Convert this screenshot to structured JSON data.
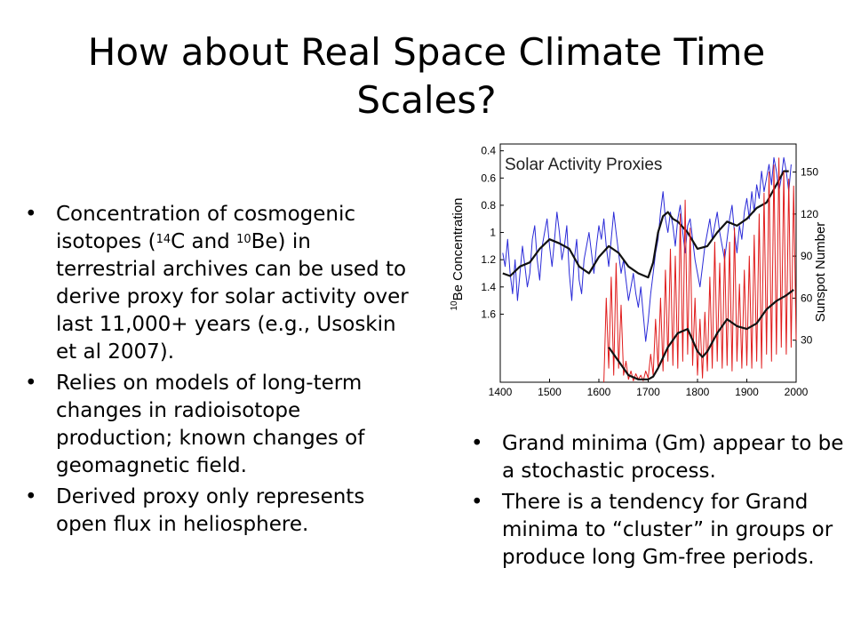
{
  "slide": {
    "title": "How about Real Space Climate Time Scales?"
  },
  "left_bullets": [
    {
      "pre": "Concentration of cosmogenic isotopes (",
      "sup1": "14",
      "mid": "C and ",
      "sup2": "10",
      "post": "Be) in terrestrial archives can be used to derive proxy for solar activity over last 11,000+ years (e.g., Usoskin et al 2007)."
    },
    {
      "text": "Relies on models of long-term changes in radioisotope production; known changes of geomagnetic field."
    },
    {
      "text": "Derived proxy only represents open flux in heliosphere."
    }
  ],
  "right_bullets": [
    "Grand minima (Gm) appear to be a stochastic process.",
    "There is a tendency for Grand minima to “cluster” in groups or produce long Gm-free periods."
  ],
  "chart_data": {
    "type": "line",
    "title": "Solar Activity Proxies",
    "xlabel": "",
    "xlim": [
      1400,
      2000
    ],
    "x_ticks": [
      1400,
      1500,
      1600,
      1700,
      1800,
      1900,
      2000
    ],
    "left_axis": {
      "label_sup": "10",
      "label": "Be Concentration",
      "inverted": true,
      "range": [
        0.35,
        2.1
      ],
      "ticks": [
        "0.4",
        "0.6",
        "0.8",
        "1",
        "1.2",
        "1.4",
        "1.6"
      ]
    },
    "right_axis": {
      "label": "Sunspot Number",
      "range": [
        0,
        170
      ],
      "ticks": [
        "30",
        "60",
        "90",
        "120",
        "150"
      ]
    },
    "series": [
      {
        "role": "be10_raw",
        "color": "#2a2ad8",
        "axis": "left",
        "x": [
          1405,
          1410,
          1415,
          1420,
          1425,
          1430,
          1435,
          1440,
          1445,
          1450,
          1455,
          1460,
          1465,
          1470,
          1475,
          1480,
          1485,
          1490,
          1495,
          1500,
          1505,
          1510,
          1515,
          1520,
          1525,
          1530,
          1535,
          1540,
          1545,
          1550,
          1555,
          1560,
          1565,
          1570,
          1575,
          1580,
          1585,
          1590,
          1595,
          1600,
          1605,
          1610,
          1615,
          1620,
          1625,
          1630,
          1635,
          1640,
          1645,
          1650,
          1655,
          1660,
          1665,
          1670,
          1675,
          1680,
          1685,
          1690,
          1695,
          1700,
          1705,
          1710,
          1715,
          1720,
          1725,
          1730,
          1735,
          1740,
          1745,
          1750,
          1755,
          1760,
          1765,
          1770,
          1775,
          1780,
          1785,
          1790,
          1795,
          1800,
          1805,
          1810,
          1815,
          1820,
          1825,
          1830,
          1835,
          1840,
          1845,
          1850,
          1855,
          1860,
          1865,
          1870,
          1875,
          1880,
          1885,
          1890,
          1895,
          1900,
          1905,
          1910,
          1915,
          1920,
          1925,
          1930,
          1935,
          1940,
          1945,
          1950,
          1955,
          1960,
          1965,
          1970,
          1975,
          1980,
          1985,
          1990
        ],
        "y": [
          1.15,
          1.25,
          1.05,
          1.3,
          1.45,
          1.2,
          1.5,
          1.3,
          1.1,
          1.25,
          1.4,
          1.3,
          1.05,
          0.95,
          1.2,
          1.35,
          1.1,
          1.0,
          0.9,
          1.1,
          1.25,
          1.05,
          0.85,
          1.0,
          1.2,
          1.1,
          0.95,
          1.3,
          1.5,
          1.2,
          1.05,
          1.35,
          1.45,
          1.2,
          1.1,
          1.0,
          1.15,
          1.3,
          1.1,
          0.95,
          1.05,
          0.9,
          1.1,
          1.25,
          1.05,
          0.85,
          1.0,
          1.15,
          1.3,
          1.2,
          1.35,
          1.5,
          1.4,
          1.3,
          1.45,
          1.55,
          1.4,
          1.6,
          1.8,
          1.65,
          1.45,
          1.3,
          1.15,
          1.05,
          0.85,
          0.7,
          0.9,
          1.0,
          0.85,
          0.95,
          1.1,
          0.9,
          0.8,
          1.0,
          1.15,
          0.95,
          0.9,
          1.05,
          1.2,
          1.3,
          1.4,
          1.25,
          1.1,
          1.0,
          0.9,
          1.05,
          0.95,
          0.85,
          1.0,
          1.1,
          1.2,
          1.05,
          0.9,
          0.8,
          1.0,
          1.15,
          0.95,
          1.05,
          0.85,
          0.75,
          0.9,
          0.7,
          0.85,
          0.65,
          0.75,
          0.55,
          0.7,
          0.6,
          0.5,
          0.65,
          0.45,
          0.55,
          0.7,
          0.6,
          0.45,
          0.55,
          0.7,
          0.5
        ]
      },
      {
        "role": "be10_smoothed",
        "color": "#111111",
        "axis": "left",
        "x": [
          1405,
          1420,
          1440,
          1460,
          1480,
          1500,
          1520,
          1540,
          1560,
          1580,
          1600,
          1620,
          1640,
          1660,
          1680,
          1700,
          1710,
          1720,
          1730,
          1740,
          1750,
          1760,
          1780,
          1800,
          1820,
          1840,
          1860,
          1880,
          1900,
          1920,
          1940,
          1960,
          1975,
          1985
        ],
        "y": [
          1.3,
          1.32,
          1.25,
          1.22,
          1.12,
          1.05,
          1.08,
          1.12,
          1.25,
          1.3,
          1.18,
          1.1,
          1.15,
          1.25,
          1.3,
          1.33,
          1.22,
          1.0,
          0.88,
          0.85,
          0.9,
          0.92,
          1.0,
          1.12,
          1.1,
          1.0,
          0.92,
          0.95,
          0.9,
          0.82,
          0.78,
          0.65,
          0.55,
          0.55
        ]
      },
      {
        "role": "sunspot_raw",
        "color": "#e01c1c",
        "axis": "right",
        "x": [
          1610,
          1615,
          1620,
          1625,
          1630,
          1635,
          1640,
          1645,
          1650,
          1655,
          1660,
          1665,
          1670,
          1675,
          1680,
          1685,
          1690,
          1695,
          1700,
          1705,
          1710,
          1715,
          1720,
          1725,
          1730,
          1735,
          1740,
          1745,
          1750,
          1755,
          1760,
          1765,
          1770,
          1775,
          1780,
          1785,
          1790,
          1795,
          1800,
          1805,
          1810,
          1815,
          1820,
          1825,
          1830,
          1835,
          1840,
          1845,
          1850,
          1855,
          1860,
          1865,
          1870,
          1875,
          1880,
          1885,
          1890,
          1895,
          1900,
          1905,
          1910,
          1915,
          1920,
          1925,
          1930,
          1935,
          1940,
          1945,
          1950,
          1955,
          1960,
          1965,
          1970,
          1975,
          1980,
          1985,
          1990,
          1995,
          2000
        ],
        "y": [
          0,
          60,
          10,
          75,
          5,
          85,
          10,
          55,
          5,
          15,
          2,
          8,
          1,
          6,
          2,
          5,
          1,
          8,
          3,
          20,
          5,
          45,
          10,
          60,
          8,
          80,
          15,
          95,
          12,
          90,
          10,
          120,
          15,
          130,
          20,
          110,
          12,
          60,
          5,
          45,
          3,
          50,
          8,
          75,
          10,
          100,
          15,
          85,
          10,
          95,
          12,
          100,
          8,
          110,
          15,
          70,
          10,
          80,
          12,
          90,
          10,
          105,
          15,
          120,
          10,
          135,
          20,
          150,
          15,
          155,
          20,
          160,
          25,
          150,
          20,
          145,
          25,
          140,
          30
        ]
      },
      {
        "role": "sunspot_smoothed",
        "color": "#111111",
        "axis": "right",
        "x": [
          1620,
          1640,
          1660,
          1680,
          1700,
          1710,
          1720,
          1740,
          1760,
          1780,
          1790,
          1800,
          1810,
          1820,
          1840,
          1860,
          1880,
          1900,
          1920,
          1940,
          1960,
          1980,
          1995
        ],
        "y": [
          25,
          15,
          5,
          2,
          2,
          4,
          10,
          25,
          35,
          38,
          30,
          22,
          18,
          22,
          35,
          45,
          40,
          38,
          42,
          52,
          58,
          62,
          66
        ]
      }
    ]
  }
}
